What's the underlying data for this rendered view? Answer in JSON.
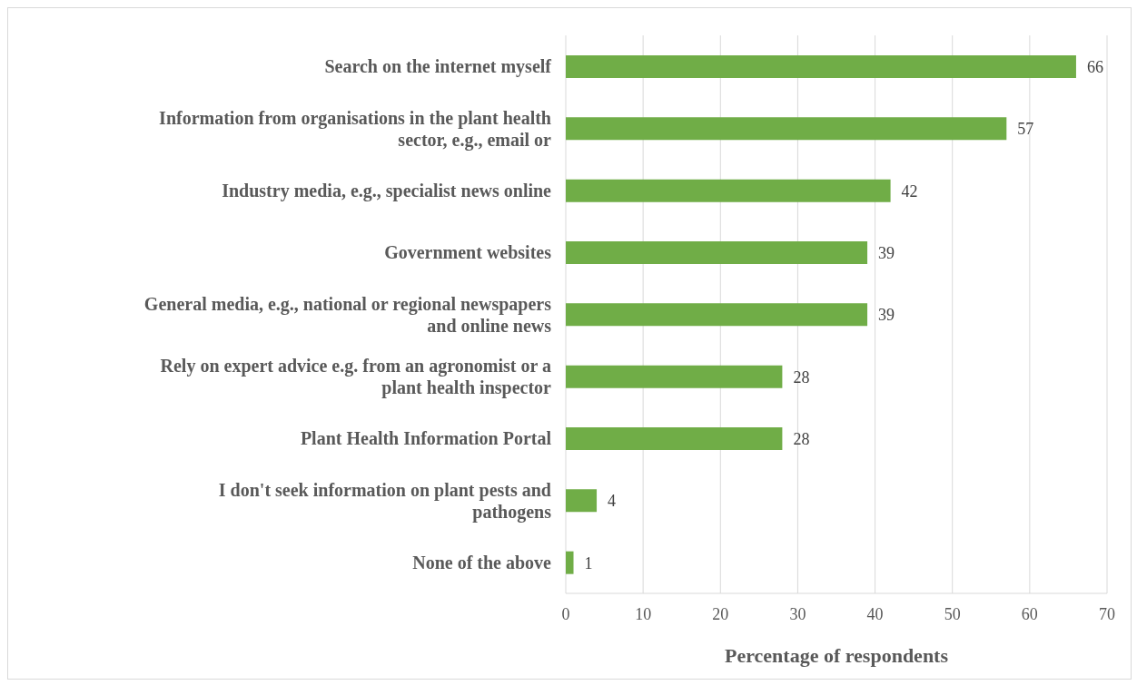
{
  "chart_data": {
    "type": "bar",
    "orientation": "horizontal",
    "xlabel": "Percentage of respondents",
    "categories": [
      "Search on the internet myself",
      "Information from organisations in the plant health sector, e.g., email or",
      "Industry media, e.g., specialist news online",
      "Government websites",
      "General media, e.g., national or regional newspapers and online news",
      "Rely on expert advice e.g. from an agronomist or a plant health inspector",
      "Plant Health Information Portal",
      "I don't seek information on plant pests and pathogens",
      "None of the above"
    ],
    "values": [
      66,
      57,
      42,
      39,
      39,
      28,
      28,
      4,
      1
    ],
    "color": "#70ad47",
    "xlim": [
      0,
      70
    ],
    "xticks": [
      0,
      10,
      20,
      30,
      40,
      50,
      60,
      70
    ],
    "grid": "x",
    "data_labels": true,
    "legend": false
  }
}
